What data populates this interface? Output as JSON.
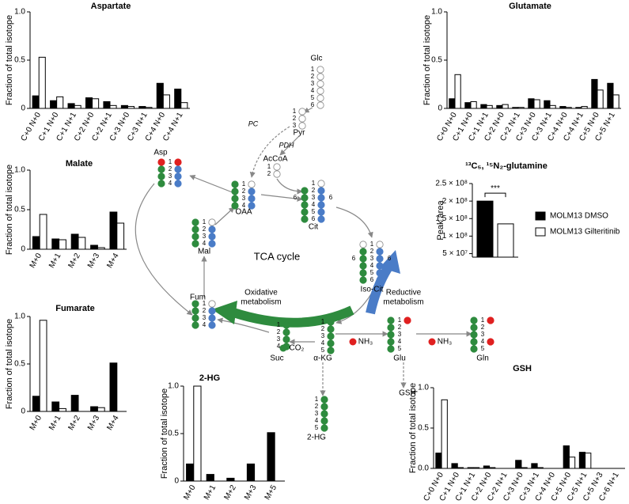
{
  "chart_data": [
    {
      "type": "bar",
      "title": "Aspartate",
      "y_label": "Fraction of total isotope",
      "categories": [
        "C+0 N+0",
        "C+1 N+0",
        "C+1 N+1",
        "C+2 N+0",
        "C+2 N+1",
        "C+3 N+0",
        "C+3 N+1",
        "C+4 N+0",
        "C+4 N+1"
      ],
      "series": [
        {
          "color": "#000000",
          "values": [
            0.13,
            0.08,
            0.05,
            0.11,
            0.07,
            0.03,
            0.02,
            0.26,
            0.2
          ]
        },
        {
          "color": "#ffffff",
          "values": [
            0.53,
            0.12,
            0.03,
            0.1,
            0.03,
            0.02,
            0.01,
            0.14,
            0.06
          ]
        }
      ],
      "ylim": [
        0,
        1
      ],
      "yticks": [
        0,
        0.5,
        {
          "value": 1,
          "label": "1.0"
        }
      ]
    },
    {
      "type": "bar",
      "title": "Glutamate",
      "y_label": "Fraction of total isotope",
      "categories": [
        "C+0 N+0",
        "C+1 N+0",
        "C+1 N+1",
        "C+2 N+0",
        "C+2 N+1",
        "C+3 N+0",
        "C+3 N+1",
        "C+4 N+0",
        "C+4 N+1",
        "C+5 N+0",
        "C+5 N+1"
      ],
      "series": [
        {
          "color": "#000000",
          "values": [
            0.1,
            0.06,
            0.04,
            0.03,
            0.01,
            0.1,
            0.08,
            0.02,
            0.01,
            0.3,
            0.26
          ]
        },
        {
          "color": "#ffffff",
          "values": [
            0.35,
            0.07,
            0.03,
            0.04,
            0.01,
            0.09,
            0.03,
            0.01,
            0.02,
            0.19,
            0.14
          ]
        }
      ],
      "ylim": [
        0,
        1
      ],
      "yticks": [
        0,
        0.5,
        {
          "value": 1,
          "label": "1.0"
        }
      ]
    },
    {
      "type": "bar",
      "title": "Malate",
      "y_label": "Fraction of total isotope",
      "categories": [
        "M+0",
        "M+1",
        "M+2",
        "M+3",
        "M+4"
      ],
      "series": [
        {
          "color": "#000000",
          "values": [
            0.16,
            0.13,
            0.19,
            0.05,
            0.47
          ]
        },
        {
          "color": "#ffffff",
          "values": [
            0.44,
            0.12,
            0.15,
            0.02,
            0.33
          ]
        }
      ],
      "ylim": [
        0,
        1
      ],
      "yticks": [
        0,
        0.5,
        {
          "value": 1,
          "label": "1.0"
        }
      ]
    },
    {
      "type": "bar",
      "title": "Fumarate",
      "y_label": "Fraction of total isotope",
      "categories": [
        "M+0",
        "M+1",
        "M+2",
        "M+3",
        "M+4"
      ],
      "series": [
        {
          "color": "#000000",
          "values": [
            0.16,
            0.1,
            0.17,
            0.05,
            0.51
          ]
        },
        {
          "color": "#ffffff",
          "values": [
            0.96,
            0.03,
            0,
            0.04,
            0
          ]
        }
      ],
      "ylim": [
        0,
        1
      ],
      "yticks": [
        0,
        0.5,
        {
          "value": 1,
          "label": "1.0"
        }
      ]
    },
    {
      "type": "bar",
      "title": "2-HG",
      "y_label": "Fraction of total isotope",
      "categories": [
        "M+0",
        "M+1",
        "M+2",
        "M+3",
        "M+5"
      ],
      "series": [
        {
          "color": "#000000",
          "values": [
            0.18,
            0.07,
            0.03,
            0.18,
            0.51
          ]
        },
        {
          "color": "#ffffff",
          "values": [
            1.0,
            0,
            0,
            0,
            0
          ]
        }
      ],
      "ylim": [
        0,
        1
      ],
      "yticks": [
        0,
        0.5,
        {
          "value": 1,
          "label": "1.0"
        }
      ]
    },
    {
      "type": "bar",
      "title": "GSH",
      "y_label": "Fraction of total isotope",
      "categories": [
        "C+0 N+0",
        "C+1 N+0",
        "C+1 N+1",
        "C+2 N+0",
        "C+2 N+1",
        "C+3 N+0",
        "C+3 N+1",
        "C+4 N+0",
        "C+5 N+0",
        "C+5 N+1",
        "C+5 N+3",
        "C+6 N+1"
      ],
      "series": [
        {
          "color": "#000000",
          "values": [
            0.19,
            0.06,
            0.01,
            0.03,
            0,
            0.1,
            0.06,
            0,
            0.28,
            0.2,
            0,
            0
          ]
        },
        {
          "color": "#ffffff",
          "values": [
            0.85,
            0.01,
            0.01,
            0.01,
            0,
            0.01,
            0.01,
            0,
            0.14,
            0.19,
            0,
            0
          ]
        }
      ],
      "ylim": [
        0,
        1
      ],
      "yticks": [
        {
          "value": 0,
          "label": "0.0"
        },
        0.5,
        {
          "value": 1,
          "label": "1.0"
        }
      ]
    },
    {
      "type": "bar",
      "title": "¹³C₅, ¹⁵N₂-glutamine",
      "y_label": "Peak area",
      "categories": [
        null
      ],
      "series": [
        {
          "name": "MOLM13 DMSO",
          "color": "#000000",
          "values": [
            200000000
          ]
        },
        {
          "name": "MOLM13 Gilteritinib",
          "color": "#ffffff",
          "values": [
            135000000
          ]
        }
      ],
      "annotation": "***",
      "legend": "right",
      "ylim": [
        40000000,
        250000000
      ],
      "yticks": [
        {
          "value": 50000000,
          "label": "5 × 10⁷"
        },
        {
          "value": 100000000,
          "label": "1 × 10⁸"
        },
        {
          "value": 150000000,
          "label": "1.5 × 10⁸"
        },
        {
          "value": 200000000,
          "label": "2 × 10⁸"
        },
        {
          "value": 250000000,
          "label": "2.5 × 10⁸"
        }
      ]
    }
  ],
  "diagram": {
    "molecules": [
      {
        "label": "Glc",
        "numbers": [
          "1",
          "2",
          "3",
          "4",
          "5",
          "6"
        ],
        "columns": [
          "wwwwww"
        ]
      },
      {
        "label": "Pyr",
        "numbers": [
          "1",
          "2",
          "3"
        ],
        "columns": [
          "www"
        ]
      },
      {
        "label": "AcCoA",
        "numbers": [
          "1",
          "2"
        ],
        "columns": [
          "ww"
        ]
      },
      {
        "label": "Asp",
        "numbers": [
          "1",
          "2",
          "3",
          "4"
        ],
        "columns": [
          "rggg",
          "rbbb"
        ]
      },
      {
        "label": "OAA",
        "numbers": [
          "1",
          "2",
          "3",
          "4"
        ],
        "columns": [
          "gggg",
          "wbbb"
        ]
      },
      {
        "label": "Cit",
        "numbers": [
          "1",
          "2",
          "3",
          "4",
          "5",
          "6"
        ],
        "columns": [
          "-ggggg",
          "wbbbbb"
        ],
        "sides": [
          "6",
          "6"
        ]
      },
      {
        "label": "Mal",
        "numbers": [
          "1",
          "2",
          "3",
          "4"
        ],
        "columns": [
          "gggg",
          "wbbb"
        ]
      },
      {
        "label": "Iso-Cit",
        "numbers": [
          "1",
          "2",
          "3",
          "4",
          "5",
          "6"
        ],
        "columns": [
          "wggggg",
          "wbbbbb"
        ],
        "sides": [
          "6",
          "6"
        ]
      },
      {
        "label": "Fum",
        "numbers": [
          "1",
          "2",
          "3",
          "4"
        ],
        "columns": [
          "gggg",
          "wbbb"
        ]
      },
      {
        "label": "α-KG",
        "numbers": [
          "1",
          "2",
          "3",
          "4",
          "5"
        ],
        "columns": [
          "ggggg"
        ]
      },
      {
        "label": "Suc",
        "numbers": [
          "1",
          "2",
          "3",
          "4"
        ],
        "columns": [
          "gggg"
        ]
      },
      {
        "label": "Glu",
        "numbers": [
          "1",
          "2",
          "3",
          "4",
          "5"
        ],
        "columns": [
          "ggggg",
          "r----"
        ]
      },
      {
        "label": "Gln",
        "numbers": [
          "1",
          "2",
          "3",
          "4",
          "5"
        ],
        "columns": [
          "ggggg",
          "r--r-"
        ]
      },
      {
        "label": "2-HG",
        "numbers": [
          "1",
          "2",
          "3",
          "4",
          "5"
        ],
        "columns": [
          "ggggg"
        ]
      }
    ],
    "annotations": [
      "PC",
      "PDH",
      "TCA cycle",
      "Oxidative",
      "metabolism",
      "Reductive",
      "metabolism",
      "CO₂",
      "NH₃",
      "NH₃",
      "GSH"
    ]
  }
}
